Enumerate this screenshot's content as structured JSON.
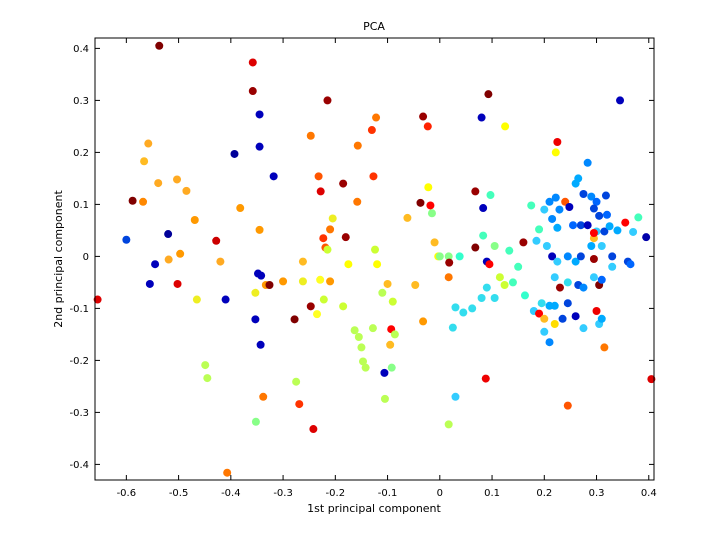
{
  "chart_data": {
    "type": "scatter",
    "title": "PCA",
    "xlabel": "1st principal component",
    "ylabel": "2nd principal component",
    "xlim": [
      -0.66,
      0.41
    ],
    "ylim": [
      -0.43,
      0.42
    ],
    "xticks": [
      -0.6,
      -0.5,
      -0.4,
      -0.3,
      -0.2,
      -0.1,
      0,
      0.1,
      0.2,
      0.3,
      0.4
    ],
    "xtick_labels": [
      "-0.6",
      "-0.5",
      "-0.4",
      "-0.3",
      "-0.2",
      "-0.1",
      "0",
      "0.1",
      "0.2",
      "0.3",
      "0.4"
    ],
    "yticks": [
      -0.4,
      -0.3,
      -0.2,
      -0.1,
      0,
      0.1,
      0.2,
      0.3,
      0.4
    ],
    "ytick_labels": [
      "-0.4",
      "-0.3",
      "-0.2",
      "-0.1",
      "0",
      "0.1",
      "0.2",
      "0.3",
      "0.4"
    ],
    "grid": false,
    "legend": "none",
    "points": [
      {
        "x": -0.537,
        "y": 0.405,
        "color": "#800000"
      },
      {
        "x": -0.358,
        "y": 0.373,
        "color": "#dd0000"
      },
      {
        "x": -0.358,
        "y": 0.318,
        "color": "#990000"
      },
      {
        "x": -0.345,
        "y": 0.273,
        "color": "#0000bb"
      },
      {
        "x": -0.215,
        "y": 0.3,
        "color": "#990000"
      },
      {
        "x": -0.558,
        "y": 0.217,
        "color": "#ffaa22"
      },
      {
        "x": -0.566,
        "y": 0.183,
        "color": "#ffbb22"
      },
      {
        "x": -0.393,
        "y": 0.197,
        "color": "#000099"
      },
      {
        "x": -0.345,
        "y": 0.211,
        "color": "#0000bb"
      },
      {
        "x": -0.318,
        "y": 0.154,
        "color": "#0000bb"
      },
      {
        "x": -0.588,
        "y": 0.107,
        "color": "#800000"
      },
      {
        "x": -0.568,
        "y": 0.105,
        "color": "#ff8800"
      },
      {
        "x": -0.539,
        "y": 0.141,
        "color": "#ffaa22"
      },
      {
        "x": -0.503,
        "y": 0.148,
        "color": "#ffaa22"
      },
      {
        "x": -0.485,
        "y": 0.126,
        "color": "#ffaa22"
      },
      {
        "x": -0.469,
        "y": 0.07,
        "color": "#ff9900"
      },
      {
        "x": -0.382,
        "y": 0.093,
        "color": "#ff9900"
      },
      {
        "x": -0.6,
        "y": 0.032,
        "color": "#0044dd"
      },
      {
        "x": -0.52,
        "y": 0.043,
        "color": "#000099"
      },
      {
        "x": -0.545,
        "y": -0.015,
        "color": "#0000bb"
      },
      {
        "x": -0.519,
        "y": -0.006,
        "color": "#ffaa22"
      },
      {
        "x": -0.555,
        "y": -0.053,
        "color": "#0000bb"
      },
      {
        "x": -0.497,
        "y": 0.005,
        "color": "#ff9900"
      },
      {
        "x": -0.502,
        "y": -0.053,
        "color": "#dd0000"
      },
      {
        "x": -0.655,
        "y": -0.083,
        "color": "#dd0000"
      },
      {
        "x": -0.428,
        "y": 0.03,
        "color": "#cc0000"
      },
      {
        "x": -0.42,
        "y": -0.01,
        "color": "#ffaa22"
      },
      {
        "x": -0.465,
        "y": -0.083,
        "color": "#eeee22"
      },
      {
        "x": -0.41,
        "y": -0.083,
        "color": "#0000bb"
      },
      {
        "x": -0.345,
        "y": 0.051,
        "color": "#ff9900"
      },
      {
        "x": -0.348,
        "y": -0.033,
        "color": "#0000bb"
      },
      {
        "x": -0.342,
        "y": -0.037,
        "color": "#0000bb"
      },
      {
        "x": -0.333,
        "y": -0.055,
        "color": "#ff9900"
      },
      {
        "x": -0.326,
        "y": -0.055,
        "color": "#800000"
      },
      {
        "x": -0.353,
        "y": -0.07,
        "color": "#eeee22"
      },
      {
        "x": -0.3,
        "y": -0.048,
        "color": "#ff9900"
      },
      {
        "x": -0.353,
        "y": -0.121,
        "color": "#0000bb"
      },
      {
        "x": -0.343,
        "y": -0.17,
        "color": "#0000bb"
      },
      {
        "x": -0.449,
        "y": -0.209,
        "color": "#bbff55"
      },
      {
        "x": -0.445,
        "y": -0.234,
        "color": "#bbff55"
      },
      {
        "x": -0.338,
        "y": -0.27,
        "color": "#ff7700"
      },
      {
        "x": -0.352,
        "y": -0.318,
        "color": "#88ff88"
      },
      {
        "x": -0.407,
        "y": -0.416,
        "color": "#ff7700"
      },
      {
        "x": -0.247,
        "y": 0.232,
        "color": "#ff7700"
      },
      {
        "x": -0.232,
        "y": 0.154,
        "color": "#ff5500"
      },
      {
        "x": -0.228,
        "y": 0.125,
        "color": "#dd0000"
      },
      {
        "x": -0.185,
        "y": 0.14,
        "color": "#990000"
      },
      {
        "x": -0.157,
        "y": 0.213,
        "color": "#ff7700"
      },
      {
        "x": -0.13,
        "y": 0.243,
        "color": "#ff3300"
      },
      {
        "x": -0.122,
        "y": 0.267,
        "color": "#ff7700"
      },
      {
        "x": -0.032,
        "y": 0.269,
        "color": "#990000"
      },
      {
        "x": -0.023,
        "y": 0.25,
        "color": "#ff2200"
      },
      {
        "x": -0.127,
        "y": 0.154,
        "color": "#ff3300"
      },
      {
        "x": -0.158,
        "y": 0.105,
        "color": "#ff7700"
      },
      {
        "x": -0.037,
        "y": 0.103,
        "color": "#800000"
      },
      {
        "x": -0.018,
        "y": 0.098,
        "color": "#ff0000"
      },
      {
        "x": -0.022,
        "y": 0.133,
        "color": "#ffff00"
      },
      {
        "x": -0.205,
        "y": 0.073,
        "color": "#eeee22"
      },
      {
        "x": -0.21,
        "y": 0.052,
        "color": "#ff7700"
      },
      {
        "x": -0.18,
        "y": 0.037,
        "color": "#990000"
      },
      {
        "x": -0.223,
        "y": 0.035,
        "color": "#ff3300"
      },
      {
        "x": -0.219,
        "y": 0.017,
        "color": "#ff5500"
      },
      {
        "x": -0.215,
        "y": 0.013,
        "color": "#ccff33"
      },
      {
        "x": -0.262,
        "y": -0.01,
        "color": "#ffbb22"
      },
      {
        "x": -0.229,
        "y": -0.045,
        "color": "#ffff22"
      },
      {
        "x": -0.262,
        "y": -0.048,
        "color": "#eeee22"
      },
      {
        "x": -0.21,
        "y": -0.048,
        "color": "#ff9900"
      },
      {
        "x": -0.175,
        "y": -0.015,
        "color": "#ffff00"
      },
      {
        "x": -0.124,
        "y": 0.013,
        "color": "#ccff33"
      },
      {
        "x": -0.12,
        "y": -0.015,
        "color": "#ffff00"
      },
      {
        "x": -0.1,
        "y": -0.053,
        "color": "#ffbb22"
      },
      {
        "x": -0.062,
        "y": 0.074,
        "color": "#ffbb22"
      },
      {
        "x": -0.047,
        "y": -0.055,
        "color": "#ffbb22"
      },
      {
        "x": -0.01,
        "y": 0.027,
        "color": "#ffbb22"
      },
      {
        "x": -0.003,
        "y": 0.0,
        "color": "#ffff00"
      },
      {
        "x": 0.0,
        "y": 0.0,
        "color": "#88ff88"
      },
      {
        "x": 0.017,
        "y": -0.04,
        "color": "#ff7700"
      },
      {
        "x": -0.015,
        "y": 0.083,
        "color": "#88ff88"
      },
      {
        "x": -0.278,
        "y": -0.121,
        "color": "#800000"
      },
      {
        "x": -0.247,
        "y": -0.096,
        "color": "#990000"
      },
      {
        "x": -0.235,
        "y": -0.111,
        "color": "#ffff22"
      },
      {
        "x": -0.222,
        "y": -0.083,
        "color": "#ccff33"
      },
      {
        "x": -0.185,
        "y": -0.096,
        "color": "#ccff33"
      },
      {
        "x": -0.163,
        "y": -0.142,
        "color": "#bbff55"
      },
      {
        "x": -0.155,
        "y": -0.155,
        "color": "#bbff55"
      },
      {
        "x": -0.15,
        "y": -0.175,
        "color": "#bbff55"
      },
      {
        "x": -0.128,
        "y": -0.138,
        "color": "#bbff55"
      },
      {
        "x": -0.147,
        "y": -0.202,
        "color": "#bbff55"
      },
      {
        "x": -0.142,
        "y": -0.214,
        "color": "#bbff55"
      },
      {
        "x": -0.11,
        "y": -0.07,
        "color": "#bbff55"
      },
      {
        "x": -0.09,
        "y": -0.087,
        "color": "#ccff33"
      },
      {
        "x": -0.093,
        "y": -0.14,
        "color": "#ff0000"
      },
      {
        "x": -0.086,
        "y": -0.15,
        "color": "#bbff55"
      },
      {
        "x": -0.095,
        "y": -0.17,
        "color": "#ffbb22"
      },
      {
        "x": -0.106,
        "y": -0.224,
        "color": "#0000bb"
      },
      {
        "x": -0.092,
        "y": -0.214,
        "color": "#88ff88"
      },
      {
        "x": -0.105,
        "y": -0.274,
        "color": "#bbff55"
      },
      {
        "x": -0.275,
        "y": -0.241,
        "color": "#bbff55"
      },
      {
        "x": -0.269,
        "y": -0.284,
        "color": "#ff3300"
      },
      {
        "x": -0.242,
        "y": -0.332,
        "color": "#dd0000"
      },
      {
        "x": -0.032,
        "y": -0.125,
        "color": "#ff9900"
      },
      {
        "x": 0.017,
        "y": -0.323,
        "color": "#bbff55"
      },
      {
        "x": 0.093,
        "y": 0.312,
        "color": "#800000"
      },
      {
        "x": 0.08,
        "y": 0.267,
        "color": "#0000bb"
      },
      {
        "x": 0.125,
        "y": 0.25,
        "color": "#ffff00"
      },
      {
        "x": 0.068,
        "y": 0.125,
        "color": "#990000"
      },
      {
        "x": 0.097,
        "y": 0.118,
        "color": "#44ffbb"
      },
      {
        "x": 0.083,
        "y": 0.093,
        "color": "#0000bb"
      },
      {
        "x": 0.038,
        "y": 0.0,
        "color": "#33ffcc"
      },
      {
        "x": 0.017,
        "y": 0.0,
        "color": "#88ff88"
      },
      {
        "x": 0.018,
        "y": -0.012,
        "color": "#990000"
      },
      {
        "x": 0.068,
        "y": 0.017,
        "color": "#800000"
      },
      {
        "x": 0.083,
        "y": 0.04,
        "color": "#44ffbb"
      },
      {
        "x": 0.09,
        "y": -0.01,
        "color": "#0000bb"
      },
      {
        "x": 0.095,
        "y": -0.015,
        "color": "#ff0000"
      },
      {
        "x": 0.105,
        "y": 0.02,
        "color": "#88ff88"
      },
      {
        "x": 0.115,
        "y": -0.04,
        "color": "#ccff33"
      },
      {
        "x": 0.124,
        "y": -0.055,
        "color": "#ccff33"
      },
      {
        "x": 0.133,
        "y": 0.011,
        "color": "#44ffbb"
      },
      {
        "x": 0.14,
        "y": -0.05,
        "color": "#44ffbb"
      },
      {
        "x": 0.15,
        "y": -0.02,
        "color": "#44ffbb"
      },
      {
        "x": 0.16,
        "y": 0.027,
        "color": "#990000"
      },
      {
        "x": 0.163,
        "y": -0.075,
        "color": "#33ffcc"
      },
      {
        "x": 0.025,
        "y": -0.137,
        "color": "#33ddee"
      },
      {
        "x": 0.03,
        "y": -0.098,
        "color": "#33ddee"
      },
      {
        "x": 0.045,
        "y": -0.108,
        "color": "#33ddee"
      },
      {
        "x": 0.062,
        "y": -0.1,
        "color": "#33ddee"
      },
      {
        "x": 0.08,
        "y": -0.08,
        "color": "#33ddee"
      },
      {
        "x": 0.09,
        "y": -0.06,
        "color": "#33ddee"
      },
      {
        "x": 0.105,
        "y": -0.08,
        "color": "#33ddee"
      },
      {
        "x": 0.03,
        "y": -0.27,
        "color": "#33ccff"
      },
      {
        "x": 0.088,
        "y": -0.235,
        "color": "#ee0000"
      },
      {
        "x": 0.175,
        "y": 0.098,
        "color": "#44ffbb"
      },
      {
        "x": 0.19,
        "y": 0.052,
        "color": "#44ffbb"
      },
      {
        "x": 0.2,
        "y": 0.09,
        "color": "#33ccff"
      },
      {
        "x": 0.21,
        "y": 0.105,
        "color": "#0088ff"
      },
      {
        "x": 0.222,
        "y": 0.113,
        "color": "#0088ff"
      },
      {
        "x": 0.229,
        "y": 0.09,
        "color": "#0088ff"
      },
      {
        "x": 0.215,
        "y": 0.072,
        "color": "#0088ff"
      },
      {
        "x": 0.225,
        "y": 0.055,
        "color": "#00aaff"
      },
      {
        "x": 0.185,
        "y": 0.03,
        "color": "#33ccff"
      },
      {
        "x": 0.205,
        "y": 0.02,
        "color": "#33ccff"
      },
      {
        "x": 0.222,
        "y": 0.2,
        "color": "#ffff00"
      },
      {
        "x": 0.225,
        "y": 0.22,
        "color": "#ee0000"
      },
      {
        "x": 0.24,
        "y": 0.105,
        "color": "#ff5500"
      },
      {
        "x": 0.248,
        "y": 0.095,
        "color": "#0000bb"
      },
      {
        "x": 0.26,
        "y": 0.14,
        "color": "#00aaff"
      },
      {
        "x": 0.265,
        "y": 0.15,
        "color": "#00aaff"
      },
      {
        "x": 0.275,
        "y": 0.12,
        "color": "#0044dd"
      },
      {
        "x": 0.283,
        "y": 0.18,
        "color": "#0088ff"
      },
      {
        "x": 0.29,
        "y": 0.115,
        "color": "#0088ff"
      },
      {
        "x": 0.3,
        "y": 0.105,
        "color": "#0066ff"
      },
      {
        "x": 0.318,
        "y": 0.117,
        "color": "#0044dd"
      },
      {
        "x": 0.295,
        "y": 0.092,
        "color": "#0044dd"
      },
      {
        "x": 0.305,
        "y": 0.078,
        "color": "#0044dd"
      },
      {
        "x": 0.32,
        "y": 0.08,
        "color": "#0066ff"
      },
      {
        "x": 0.345,
        "y": 0.3,
        "color": "#0000bb"
      },
      {
        "x": 0.255,
        "y": 0.06,
        "color": "#0066ff"
      },
      {
        "x": 0.27,
        "y": 0.06,
        "color": "#0044dd"
      },
      {
        "x": 0.283,
        "y": 0.06,
        "color": "#0000bb"
      },
      {
        "x": 0.3,
        "y": 0.048,
        "color": "#33ccff"
      },
      {
        "x": 0.295,
        "y": 0.035,
        "color": "#ffbb22"
      },
      {
        "x": 0.315,
        "y": 0.048,
        "color": "#0044dd"
      },
      {
        "x": 0.325,
        "y": 0.058,
        "color": "#00aaff"
      },
      {
        "x": 0.34,
        "y": 0.05,
        "color": "#00aaff"
      },
      {
        "x": 0.355,
        "y": 0.065,
        "color": "#ff0000"
      },
      {
        "x": 0.37,
        "y": 0.047,
        "color": "#33ccff"
      },
      {
        "x": 0.38,
        "y": 0.075,
        "color": "#44ffbb"
      },
      {
        "x": 0.395,
        "y": 0.037,
        "color": "#0000aa"
      },
      {
        "x": 0.295,
        "y": 0.045,
        "color": "#ff0000"
      },
      {
        "x": 0.215,
        "y": 0.0,
        "color": "#0000bb"
      },
      {
        "x": 0.225,
        "y": -0.01,
        "color": "#33ccff"
      },
      {
        "x": 0.245,
        "y": 0.0,
        "color": "#0088ff"
      },
      {
        "x": 0.26,
        "y": -0.01,
        "color": "#00aaff"
      },
      {
        "x": 0.27,
        "y": 0.0,
        "color": "#0044dd"
      },
      {
        "x": 0.29,
        "y": 0.02,
        "color": "#00aaff"
      },
      {
        "x": 0.31,
        "y": 0.02,
        "color": "#33ccff"
      },
      {
        "x": 0.33,
        "y": 0.0,
        "color": "#0044dd"
      },
      {
        "x": 0.33,
        "y": -0.02,
        "color": "#33ccff"
      },
      {
        "x": 0.36,
        "y": -0.01,
        "color": "#0044dd"
      },
      {
        "x": 0.365,
        "y": -0.015,
        "color": "#0066ff"
      },
      {
        "x": 0.295,
        "y": -0.005,
        "color": "#990000"
      },
      {
        "x": 0.22,
        "y": -0.04,
        "color": "#33ccff"
      },
      {
        "x": 0.23,
        "y": -0.06,
        "color": "#990000"
      },
      {
        "x": 0.245,
        "y": -0.05,
        "color": "#33ddee"
      },
      {
        "x": 0.265,
        "y": -0.055,
        "color": "#0044dd"
      },
      {
        "x": 0.275,
        "y": -0.06,
        "color": "#0088ff"
      },
      {
        "x": 0.295,
        "y": -0.04,
        "color": "#33ccff"
      },
      {
        "x": 0.305,
        "y": -0.055,
        "color": "#800000"
      },
      {
        "x": 0.31,
        "y": -0.045,
        "color": "#0066ff"
      },
      {
        "x": 0.195,
        "y": -0.09,
        "color": "#33ddee"
      },
      {
        "x": 0.21,
        "y": -0.095,
        "color": "#00aaff"
      },
      {
        "x": 0.22,
        "y": -0.095,
        "color": "#00aaff"
      },
      {
        "x": 0.245,
        "y": -0.09,
        "color": "#0044dd"
      },
      {
        "x": 0.18,
        "y": -0.105,
        "color": "#33ccff"
      },
      {
        "x": 0.19,
        "y": -0.11,
        "color": "#ff0000"
      },
      {
        "x": 0.2,
        "y": -0.12,
        "color": "#ffbb22"
      },
      {
        "x": 0.22,
        "y": -0.13,
        "color": "#ffdd00"
      },
      {
        "x": 0.235,
        "y": -0.12,
        "color": "#0044dd"
      },
      {
        "x": 0.26,
        "y": -0.115,
        "color": "#0000bb"
      },
      {
        "x": 0.275,
        "y": -0.138,
        "color": "#33ccff"
      },
      {
        "x": 0.3,
        "y": -0.105,
        "color": "#ee0000"
      },
      {
        "x": 0.305,
        "y": -0.13,
        "color": "#33ccff"
      },
      {
        "x": 0.31,
        "y": -0.12,
        "color": "#00aaff"
      },
      {
        "x": 0.2,
        "y": -0.145,
        "color": "#33ccff"
      },
      {
        "x": 0.21,
        "y": -0.165,
        "color": "#0088ff"
      },
      {
        "x": 0.315,
        "y": -0.175,
        "color": "#ff7700"
      },
      {
        "x": 0.245,
        "y": -0.287,
        "color": "#ff5500"
      },
      {
        "x": 0.405,
        "y": -0.236,
        "color": "#dd0000"
      }
    ]
  }
}
